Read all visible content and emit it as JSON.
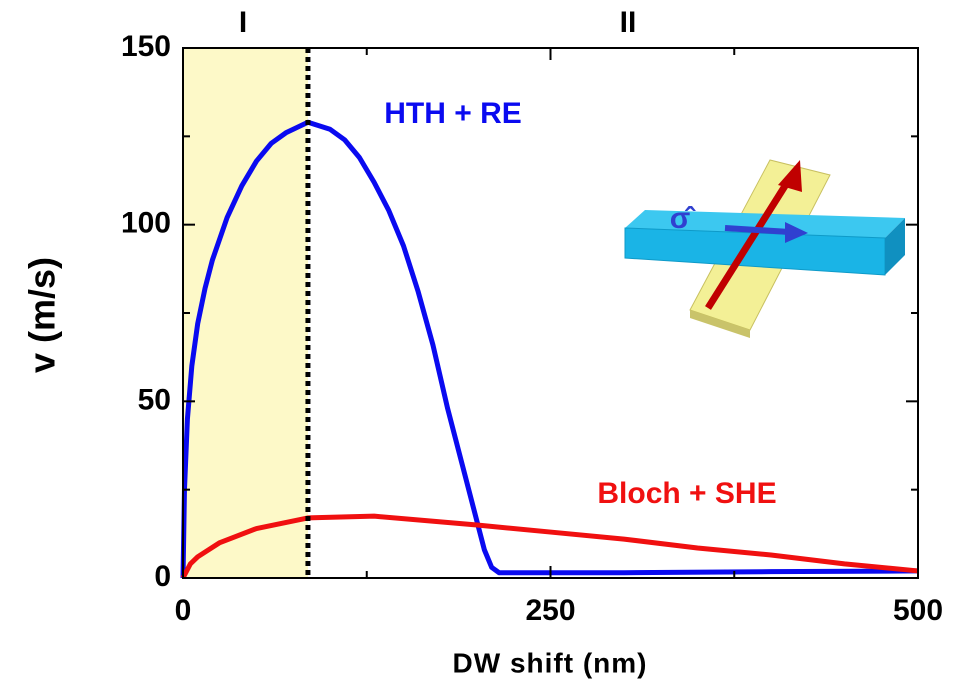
{
  "chart_data": {
    "type": "line",
    "xlabel": "DW shift (nm)",
    "ylabel": "v (m/s)",
    "xlim": [
      0,
      500
    ],
    "ylim": [
      0,
      150
    ],
    "xticks": [
      0,
      250,
      500
    ],
    "yticks": [
      0,
      50,
      100,
      150
    ],
    "xminorticks": [
      125,
      375
    ],
    "yminorticks": [
      25,
      75,
      125
    ],
    "shaded_region": [
      0,
      85
    ],
    "shaded_color": "#fdf9c8",
    "vline": 85,
    "annotations": [
      "I",
      "II"
    ],
    "inset_label": "σ̂",
    "series": [
      {
        "name": "HTH + RE",
        "color": "#0a0af0",
        "x": [
          0,
          1,
          3,
          6,
          10,
          15,
          20,
          30,
          40,
          50,
          60,
          70,
          85,
          100,
          110,
          120,
          130,
          140,
          150,
          160,
          170,
          180,
          190,
          200,
          205,
          210,
          215,
          250,
          300,
          400,
          500
        ],
        "values": [
          0,
          25,
          45,
          60,
          72,
          82,
          90,
          102,
          111,
          118,
          123,
          126,
          129,
          127,
          124,
          119,
          112,
          104,
          94,
          81,
          66,
          48,
          32,
          16,
          8,
          3,
          1.5,
          1.5,
          1.5,
          1.8,
          2
        ]
      },
      {
        "name": "Bloch + SHE",
        "color": "#f01010",
        "x": [
          0,
          5,
          10,
          25,
          50,
          85,
          130,
          200,
          250,
          300,
          350,
          400,
          450,
          500
        ],
        "values": [
          0,
          4,
          6,
          10,
          14,
          17,
          17.5,
          15,
          13,
          11,
          8.5,
          6.5,
          4,
          2
        ]
      }
    ]
  }
}
